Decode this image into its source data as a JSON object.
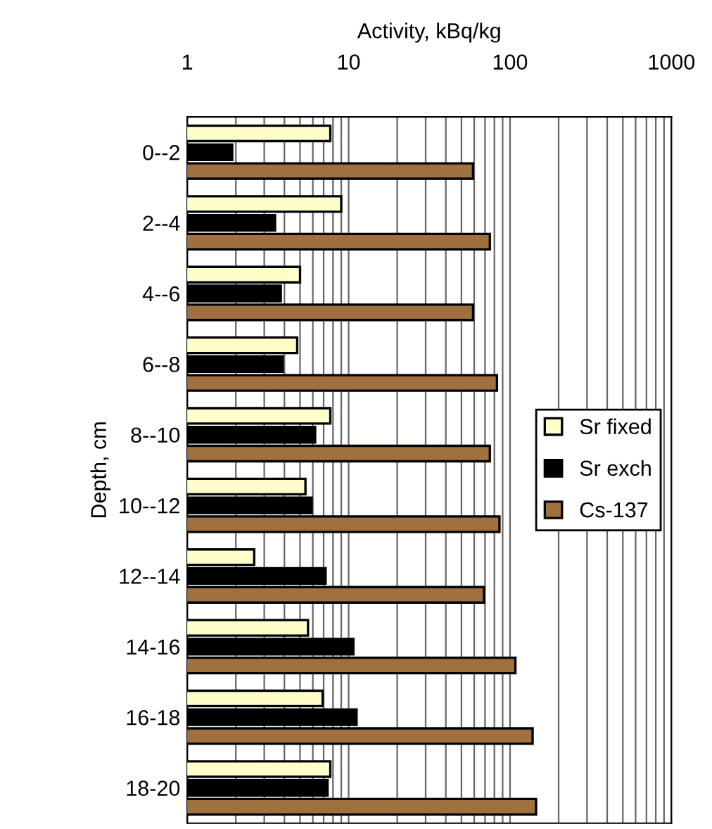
{
  "chart_data": {
    "type": "bar",
    "orientation": "horizontal",
    "xlabel": "Activity, kBq/kg",
    "ylabel": "Depth, cm",
    "categories": [
      "0--2",
      "2--4",
      "4--6",
      "6--8",
      "8--10",
      "10--12",
      "12--14",
      "14-16",
      "16-18",
      "18-20"
    ],
    "series": [
      {
        "name": "Sr fixed",
        "color": "#ffffcc",
        "values": [
          7.7,
          9.0,
          5.0,
          4.8,
          7.7,
          5.4,
          2.6,
          5.6,
          6.9,
          7.7
        ]
      },
      {
        "name": "Sr exch",
        "color": "#000000",
        "values": [
          1.9,
          3.5,
          3.8,
          3.9,
          6.2,
          5.9,
          7.2,
          10.7,
          11.2,
          7.4
        ]
      },
      {
        "name": "Cs-137",
        "color": "#a0703f",
        "values": [
          59,
          75,
          59,
          83,
          75,
          86,
          69,
          108,
          138,
          145
        ]
      }
    ],
    "log": "x",
    "xlim": [
      1,
      1000
    ],
    "xticks": [
      1,
      {
        "value": 2,
        "label": null
      },
      {
        "value": 3,
        "label": null
      },
      {
        "value": 4,
        "label": null
      },
      {
        "value": 5,
        "label": null
      },
      {
        "value": 6,
        "label": null
      },
      {
        "value": 7,
        "label": null
      },
      {
        "value": 8,
        "label": null
      },
      {
        "value": 9,
        "label": null
      },
      10,
      {
        "value": 20,
        "label": null
      },
      {
        "value": 30,
        "label": null
      },
      {
        "value": 40,
        "label": null
      },
      {
        "value": 50,
        "label": null
      },
      {
        "value": 60,
        "label": null
      },
      {
        "value": 70,
        "label": null
      },
      {
        "value": 80,
        "label": null
      },
      {
        "value": 90,
        "label": null
      },
      100,
      {
        "value": 200,
        "label": null
      },
      {
        "value": 300,
        "label": null
      },
      {
        "value": 400,
        "label": null
      },
      {
        "value": 500,
        "label": null
      },
      {
        "value": 600,
        "label": null
      },
      {
        "value": 700,
        "label": null
      },
      {
        "value": 800,
        "label": null
      },
      {
        "value": 900,
        "label": null
      },
      1000
    ],
    "grid": "x",
    "legend": "right"
  }
}
